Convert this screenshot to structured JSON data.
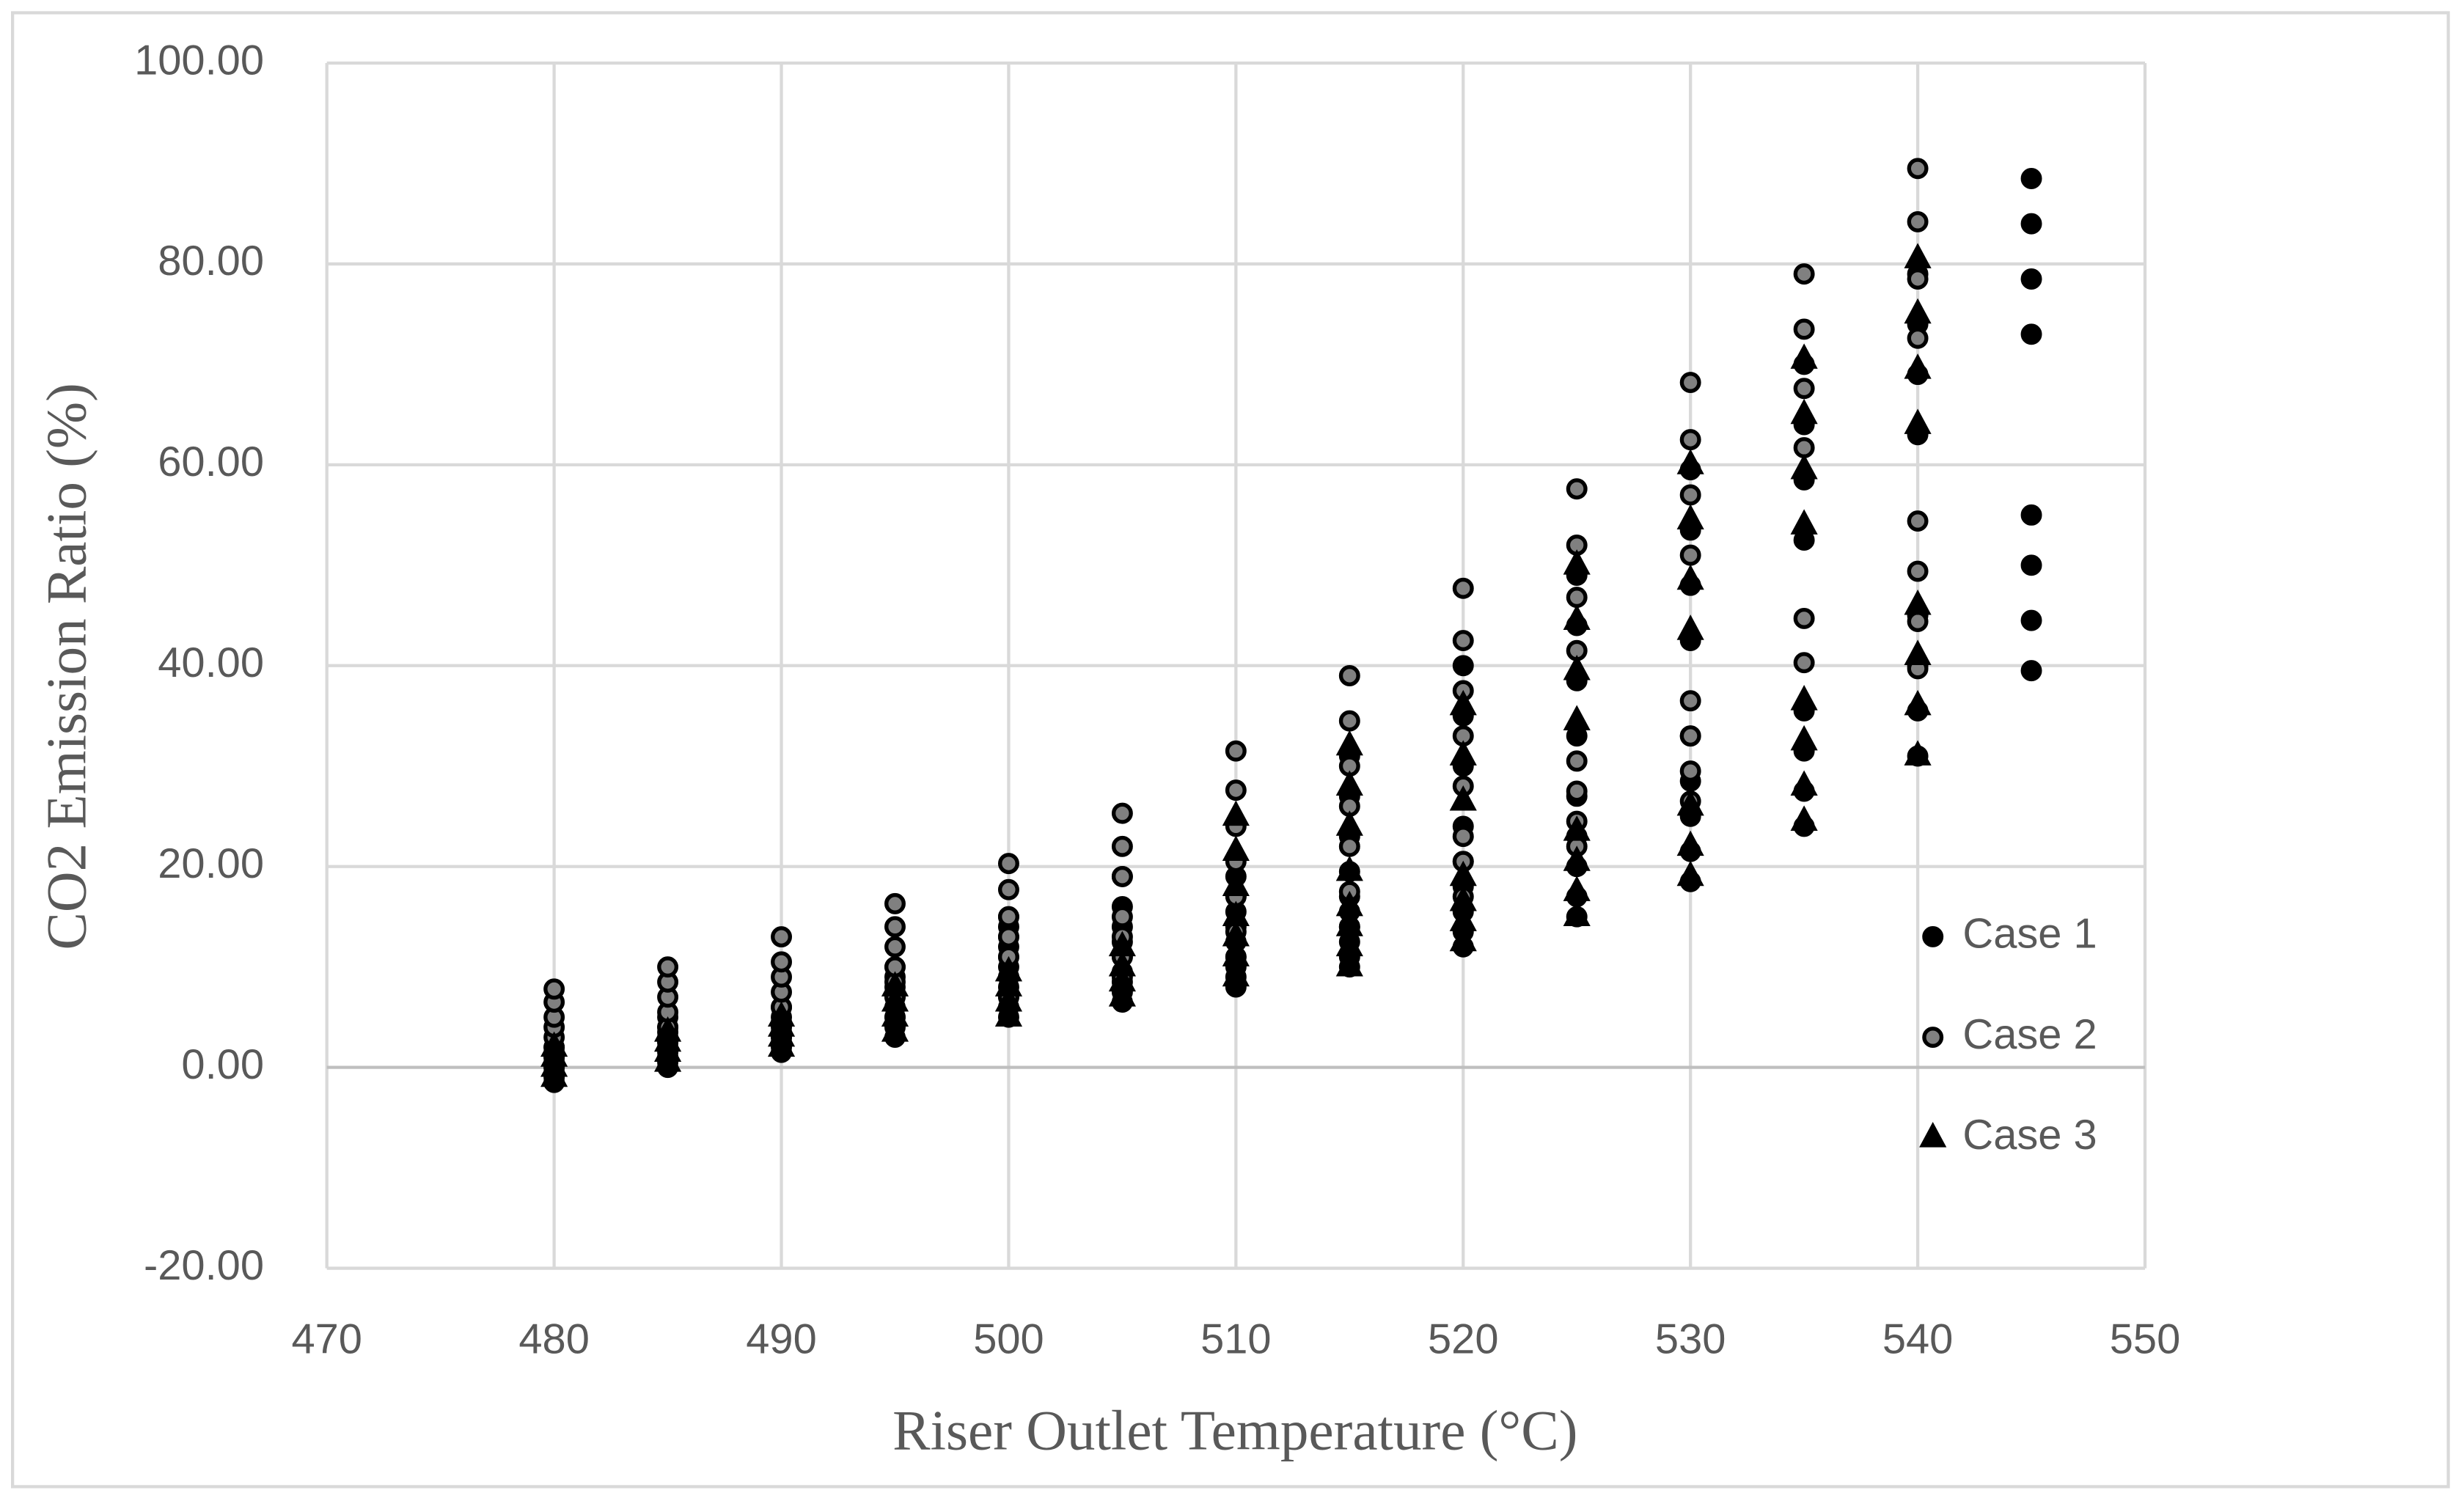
{
  "chart_data": {
    "type": "scatter",
    "xlabel": "Riser Outlet Temperature (°C)",
    "ylabel": "CO2 Emission Ratio (%)",
    "xlim": [
      470,
      550
    ],
    "xticks": [
      470,
      480,
      490,
      500,
      510,
      520,
      530,
      540,
      550
    ],
    "ylim": [
      -20,
      100
    ],
    "yticks": [
      {
        "value": -20,
        "label": "-20.00"
      },
      {
        "value": 0,
        "label": "0.00"
      },
      {
        "value": 20,
        "label": "20.00"
      },
      {
        "value": 40,
        "label": "40.00"
      },
      {
        "value": 60,
        "label": "60.00"
      },
      {
        "value": 80,
        "label": "80.00"
      },
      {
        "value": 100,
        "label": "100.00"
      }
    ],
    "grid": true,
    "legend": "right",
    "series": [
      {
        "name": "Case 1",
        "marker": "circle",
        "color": "#000000",
        "edgecolor": "#000000",
        "x": [
          480,
          480,
          480,
          480,
          480,
          480,
          480,
          480,
          485,
          485,
          485,
          485,
          485,
          485,
          485,
          485,
          485,
          485,
          490,
          490,
          490,
          490,
          490,
          490,
          490,
          490,
          495,
          495,
          495,
          495,
          495,
          495,
          495,
          495,
          500,
          500,
          500,
          500,
          500,
          500,
          500,
          500,
          500,
          500,
          500,
          505,
          505,
          505,
          505,
          505,
          505,
          505,
          505,
          505,
          510,
          510,
          510,
          510,
          510,
          510,
          510,
          510,
          510,
          515,
          515,
          515,
          515,
          515,
          515,
          515,
          515,
          515,
          515,
          520,
          520,
          520,
          520,
          520,
          520,
          520,
          520,
          520,
          525,
          525,
          525,
          525,
          525,
          525,
          525,
          525,
          525,
          530,
          530,
          530,
          530,
          530,
          530,
          530,
          530,
          530,
          535,
          535,
          535,
          535,
          535,
          535,
          535,
          535,
          540,
          540,
          540,
          540,
          540,
          540,
          540,
          540,
          545,
          545,
          545,
          545,
          545,
          545,
          545,
          545
        ],
        "values": [
          -1.5,
          -1,
          -0.5,
          0,
          0.5,
          1,
          1.5,
          2,
          0,
          0.5,
          1,
          1.5,
          2,
          2.5,
          3,
          3.5,
          4,
          5,
          1.5,
          2,
          2.5,
          3,
          3.5,
          4,
          5,
          6,
          3,
          4,
          5,
          6,
          7,
          8,
          9,
          10,
          5,
          6,
          7,
          8,
          9,
          10,
          11,
          12,
          13,
          14,
          15,
          6.5,
          7.5,
          8.5,
          9.5,
          11,
          12.5,
          14,
          16,
          19,
          8,
          9,
          10,
          11,
          12.5,
          14,
          15.5,
          17,
          19,
          10,
          11,
          12.5,
          14,
          15.5,
          17,
          19.5,
          23,
          27,
          31,
          12,
          13.5,
          15.5,
          18,
          20.5,
          24,
          30,
          35,
          40,
          15,
          17,
          20,
          23,
          27,
          33,
          38.5,
          44,
          49,
          18.5,
          21.5,
          25,
          28.5,
          33,
          42.5,
          48,
          53.5,
          59.5,
          24,
          27.5,
          31.5,
          35.5,
          52.5,
          58.5,
          64,
          70,
          31,
          35.5,
          40,
          45,
          63,
          69,
          74,
          79,
          39.5,
          44.5,
          50,
          55,
          73,
          78.5,
          84,
          88.5
        ]
      },
      {
        "name": "Case 2",
        "marker": "circle",
        "color": "#808080",
        "edgecolor": "#000000",
        "x": [
          480,
          480,
          480,
          480,
          480,
          480,
          480,
          480,
          485,
          485,
          485,
          485,
          485,
          485,
          485,
          490,
          490,
          490,
          490,
          490,
          490,
          490,
          495,
          495,
          495,
          495,
          495,
          495,
          495,
          500,
          500,
          500,
          500,
          500,
          500,
          500,
          505,
          505,
          505,
          505,
          505,
          505,
          505,
          510,
          510,
          510,
          510,
          510,
          510,
          510,
          515,
          515,
          515,
          515,
          515,
          515,
          515,
          520,
          520,
          520,
          520,
          520,
          520,
          520,
          520,
          525,
          525,
          525,
          525,
          525,
          525,
          525,
          525,
          530,
          530,
          530,
          530,
          530,
          530,
          530,
          530,
          535,
          535,
          535,
          535,
          535,
          535,
          540,
          540,
          540,
          540,
          540,
          540,
          540,
          540
        ],
        "values": [
          0,
          1,
          2,
          3,
          4,
          5,
          6.5,
          7.8,
          1,
          2.5,
          4,
          5.5,
          7,
          8.5,
          10,
          3,
          4.5,
          6,
          7.5,
          9,
          10.5,
          13,
          5,
          7,
          8.5,
          10,
          12,
          14,
          16.3,
          7,
          9,
          11,
          13,
          15,
          17.7,
          20.3,
          9,
          11,
          13,
          15,
          19,
          22,
          25.3,
          11,
          13.5,
          17,
          20.5,
          24,
          27.6,
          31.5,
          14,
          17.5,
          22,
          26,
          30,
          34.5,
          39,
          17,
          20.5,
          23,
          28,
          33,
          37.5,
          42.5,
          47.7,
          22,
          24.5,
          27.5,
          30.5,
          41.5,
          46.8,
          52,
          57.6,
          26.5,
          29.5,
          33,
          36.5,
          51,
          57,
          62.5,
          68.2,
          40.3,
          44.7,
          61.7,
          67.6,
          73.5,
          79,
          39.7,
          44.4,
          49.4,
          54.4,
          72.6,
          78.5,
          84.2,
          89.5
        ]
      },
      {
        "name": "Case 3",
        "marker": "triangle",
        "color": "#000000",
        "edgecolor": "#000000",
        "x": [
          480,
          480,
          480,
          480,
          485,
          485,
          485,
          485,
          490,
          490,
          490,
          490,
          495,
          495,
          495,
          495,
          500,
          500,
          500,
          500,
          505,
          505,
          505,
          505,
          510,
          510,
          510,
          510,
          510,
          510,
          510,
          515,
          515,
          515,
          515,
          515,
          515,
          515,
          515,
          520,
          520,
          520,
          520,
          520,
          520,
          520,
          525,
          525,
          525,
          525,
          525,
          525,
          525,
          525,
          530,
          530,
          530,
          530,
          530,
          530,
          530,
          535,
          535,
          535,
          535,
          535,
          535,
          535,
          535,
          540,
          540,
          540,
          540,
          540,
          540,
          540,
          540
        ],
        "values": [
          -1,
          0,
          1,
          2,
          0.5,
          1.5,
          2.5,
          3.5,
          2,
          3,
          4,
          5,
          3.5,
          5,
          6.5,
          8,
          5,
          6.5,
          8,
          9.5,
          7,
          8.5,
          10,
          12,
          9,
          11,
          13,
          15,
          18,
          21.5,
          25,
          10,
          12,
          14,
          16,
          19.5,
          24,
          28,
          32,
          12.5,
          14.5,
          16.5,
          19,
          26.5,
          31,
          36,
          15,
          17.5,
          20.5,
          23.5,
          34.5,
          39.5,
          44.5,
          50,
          19,
          22,
          26,
          43.5,
          48.5,
          54.5,
          60,
          24.5,
          28,
          32.5,
          36.5,
          54,
          59.5,
          65,
          70.5,
          31,
          36,
          41,
          46,
          64,
          69.5,
          75,
          80.5
        ]
      }
    ]
  }
}
